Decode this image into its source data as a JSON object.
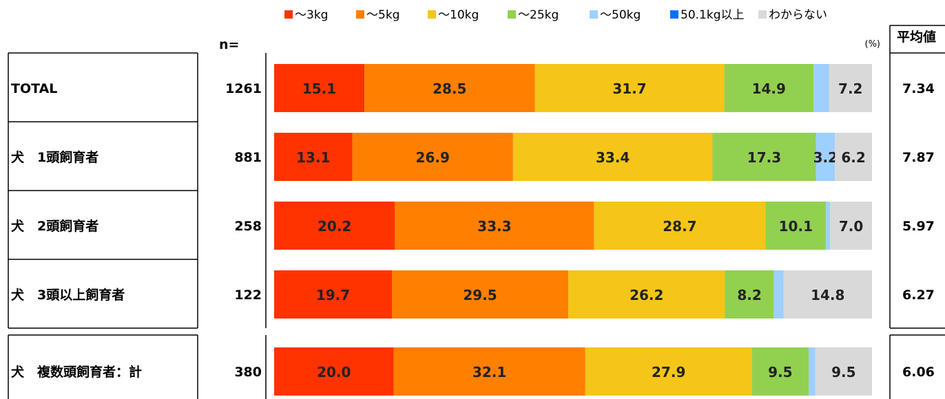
{
  "chart_data": {
    "type": "bar",
    "orientation": "horizontal",
    "stacked": true,
    "percent_unit": "(%)",
    "n_header": "n=",
    "avg_header": "平均値",
    "legend": {
      "placement": "top",
      "items": [
        "～3kg",
        "～5kg",
        "～10kg",
        "～25kg",
        "～50kg",
        "50.1kg以上",
        "わからない"
      ],
      "colors": [
        "#ff3300",
        "#ff7f00",
        "#f5c518",
        "#92d050",
        "#9dcfff",
        "#0070ff",
        "#d9d9d9"
      ]
    },
    "rows": [
      {
        "label": "TOTAL",
        "n": "1261",
        "avg": "7.34",
        "values": [
          15.1,
          28.5,
          31.7,
          14.9,
          2.6,
          0.0,
          7.2
        ],
        "labels": [
          "15.1",
          "28.5",
          "31.7",
          "14.9",
          "",
          "",
          "7.2"
        ]
      },
      {
        "label": "犬　1頭飼育者",
        "n": "881",
        "avg": "7.87",
        "values": [
          13.1,
          26.9,
          33.4,
          17.3,
          3.2,
          0.0,
          6.2
        ],
        "labels": [
          "13.1",
          "26.9",
          "33.4",
          "17.3",
          "3.2",
          "",
          "6.2"
        ]
      },
      {
        "label": "犬　2頭飼育者",
        "n": "258",
        "avg": "5.97",
        "values": [
          20.2,
          33.3,
          28.7,
          10.1,
          0.7,
          0.0,
          7.0
        ],
        "labels": [
          "20.2",
          "33.3",
          "28.7",
          "10.1",
          "",
          "",
          "7.0"
        ]
      },
      {
        "label": "犬　3頭以上飼育者",
        "n": "122",
        "avg": "6.27",
        "values": [
          19.7,
          29.5,
          26.2,
          8.2,
          1.6,
          0.0,
          14.8
        ],
        "labels": [
          "19.7",
          "29.5",
          "26.2",
          "8.2",
          "",
          "",
          "14.8"
        ]
      },
      {
        "label": "犬　複数頭飼育者：計",
        "n": "380",
        "avg": "6.06",
        "values": [
          20.0,
          32.1,
          27.9,
          9.5,
          1.1,
          0.0,
          9.5
        ],
        "labels": [
          "20.0",
          "32.1",
          "27.9",
          "9.5",
          "",
          "",
          "9.5"
        ]
      }
    ]
  }
}
